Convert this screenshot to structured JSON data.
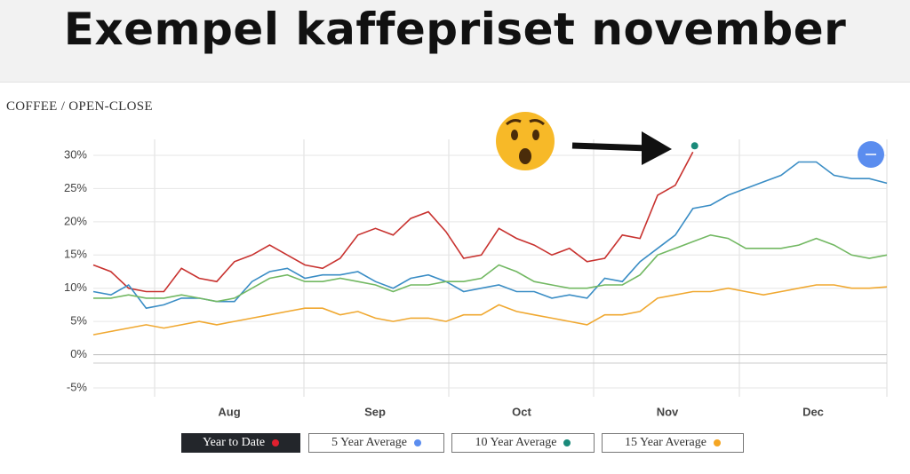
{
  "chart_data": {
    "type": "line",
    "title": "Exempel kaffepriset november",
    "subtitle": "COFFEE / OPEN-CLOSE",
    "x_axis_labels": [
      "Aug",
      "Sep",
      "Oct",
      "Nov",
      "Dec"
    ],
    "ylim": [
      -5,
      30
    ],
    "yticks": [
      {
        "value": -5,
        "label": "-5%"
      },
      {
        "value": 0,
        "label": "0%"
      },
      {
        "value": 5,
        "label": "5%"
      },
      {
        "value": 10,
        "label": "10%"
      },
      {
        "value": 15,
        "label": "15%"
      },
      {
        "value": 20,
        "label": "20%"
      },
      {
        "value": 25,
        "label": "25%"
      },
      {
        "value": 30,
        "label": "30%"
      }
    ],
    "grid": true,
    "series": [
      {
        "name": "Year to Date",
        "color": "#c8322f",
        "values": [
          13.5,
          12.5,
          10,
          9.5,
          9.5,
          13,
          11.5,
          11,
          14,
          15,
          16.5,
          15,
          13.5,
          13,
          14.5,
          18,
          19,
          18,
          20.5,
          21.5,
          18.5,
          14.5,
          15,
          19,
          17.5,
          16.5,
          15,
          16,
          14,
          14.5,
          18,
          17.5,
          24,
          25.5,
          30.5,
          null,
          null,
          null,
          null,
          null,
          null,
          null,
          null,
          null,
          null,
          null
        ]
      },
      {
        "name": "5 Year Average",
        "color": "#3a8dc5",
        "values": [
          9.5,
          9,
          10.5,
          7,
          7.5,
          8.5,
          8.5,
          8,
          8,
          11,
          12.5,
          13,
          11.5,
          12,
          12,
          12.5,
          11,
          10,
          11.5,
          12,
          11,
          9.5,
          10,
          10.5,
          9.5,
          9.5,
          8.5,
          9,
          8.5,
          11.5,
          11,
          14,
          16,
          18,
          22,
          22.5,
          24,
          25,
          26,
          27,
          29,
          29,
          27,
          26.5,
          26.5,
          25.8
        ]
      },
      {
        "name": "10 Year Average",
        "color": "#72b862",
        "values": [
          8.5,
          8.5,
          9,
          8.5,
          8.5,
          9,
          8.5,
          8,
          8.5,
          10,
          11.5,
          12,
          11,
          11,
          11.5,
          11,
          10.5,
          9.5,
          10.5,
          10.5,
          11,
          11,
          11.5,
          13.5,
          12.5,
          11,
          10.5,
          10,
          10,
          10.5,
          10.5,
          12,
          15,
          16,
          17,
          18,
          17.5,
          16,
          16,
          16,
          16.5,
          17.5,
          16.5,
          15,
          14.5,
          15
        ]
      },
      {
        "name": "15 Year Average",
        "color": "#f0a830",
        "values": [
          3,
          3.5,
          4,
          4.5,
          4,
          4.5,
          5,
          4.5,
          5,
          5.5,
          6,
          6.5,
          7,
          7,
          6,
          6.5,
          5.5,
          5,
          5.5,
          5.5,
          5,
          6,
          6,
          7.5,
          6.5,
          6,
          5.5,
          5,
          4.5,
          6,
          6,
          6.5,
          8.5,
          9,
          9.5,
          9.5,
          10,
          9.5,
          9,
          9.5,
          10,
          10.5,
          10.5,
          10,
          10,
          10.2
        ]
      }
    ]
  }
}
